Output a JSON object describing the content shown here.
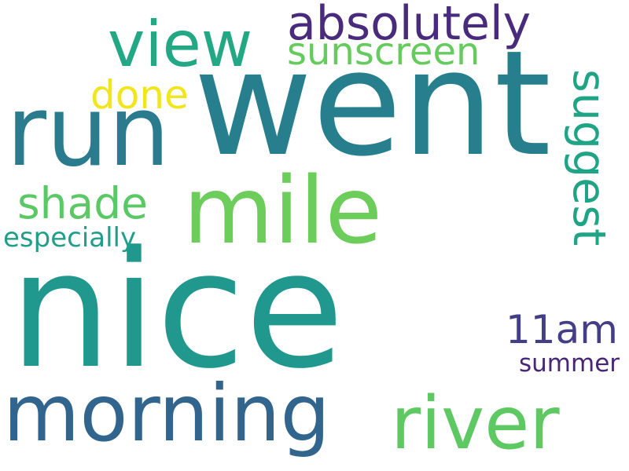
{
  "word_cloud": {
    "words": [
      {
        "id": "nice",
        "text": "nice",
        "color": "#21988d",
        "orientation": "horizontal"
      },
      {
        "id": "went",
        "text": "went",
        "color": "#277f8e",
        "orientation": "horizontal"
      },
      {
        "id": "run",
        "text": "run",
        "color": "#2a7b8e",
        "orientation": "horizontal"
      },
      {
        "id": "mile",
        "text": "mile",
        "color": "#6ccd5a",
        "orientation": "horizontal"
      },
      {
        "id": "morning",
        "text": "morning",
        "color": "#31658e",
        "orientation": "horizontal"
      },
      {
        "id": "river",
        "text": "river",
        "color": "#5ec962",
        "orientation": "horizontal"
      },
      {
        "id": "view",
        "text": "view",
        "color": "#22a884",
        "orientation": "horizontal"
      },
      {
        "id": "absolutely",
        "text": "absolutely",
        "color": "#482b7d",
        "orientation": "horizontal"
      },
      {
        "id": "suggest",
        "text": "suggest",
        "color": "#20a486",
        "orientation": "vertical"
      },
      {
        "id": "sunscreen",
        "text": "sunscreen",
        "color": "#66cb5d",
        "orientation": "horizontal"
      },
      {
        "id": "shade",
        "text": "shade",
        "color": "#5ac864",
        "orientation": "horizontal"
      },
      {
        "id": "11am",
        "text": "11am",
        "color": "#433e85",
        "orientation": "horizontal"
      },
      {
        "id": "done",
        "text": "done",
        "color": "#f1e51d",
        "orientation": "horizontal"
      },
      {
        "id": "especially",
        "text": "especially",
        "color": "#1f9e89",
        "orientation": "horizontal"
      },
      {
        "id": "summer",
        "text": "summer",
        "color": "#482576",
        "orientation": "horizontal"
      }
    ]
  }
}
